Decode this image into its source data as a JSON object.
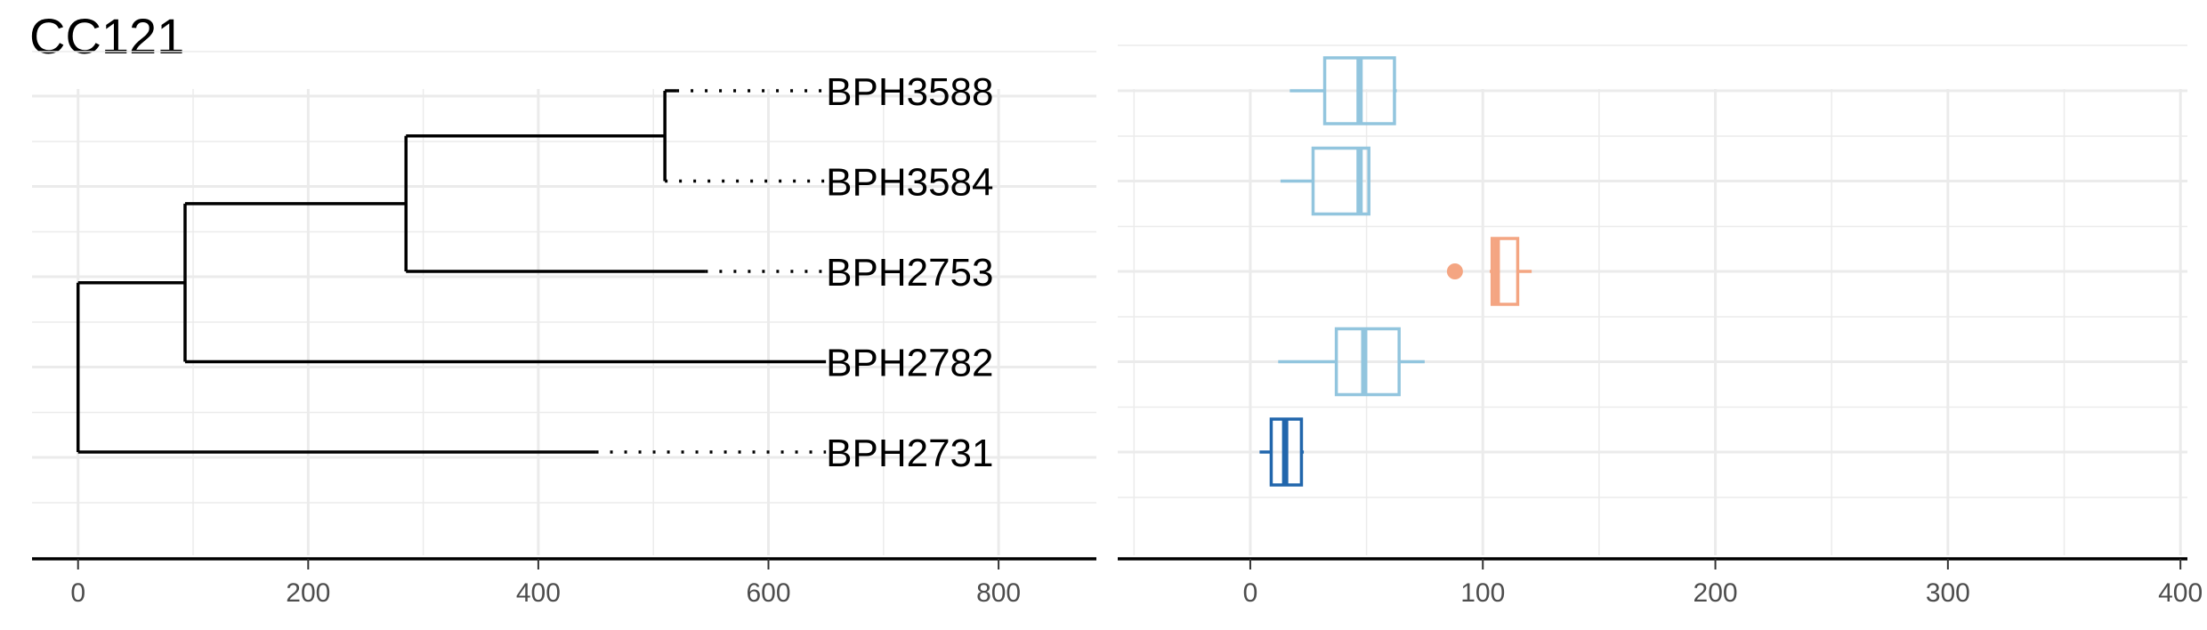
{
  "title": "CC121",
  "chart_data": [
    {
      "type": "dendrogram",
      "xlim": [
        -40,
        885
      ],
      "x_ticks": [
        0,
        200,
        400,
        600,
        800
      ],
      "grid": true,
      "leaves": [
        {
          "label": "BPH3588",
          "tip_x": 520
        },
        {
          "label": "BPH3584",
          "tip_x": 510
        },
        {
          "label": "BPH2753",
          "tip_x": 545
        },
        {
          "label": "BPH2782",
          "tip_x": 650
        },
        {
          "label": "BPH2731",
          "tip_x": 450
        }
      ],
      "nodes": [
        {
          "x": 0,
          "rows": [
            3,
            4
          ]
        },
        {
          "x": 93,
          "rows": [
            2,
            3
          ]
        },
        {
          "x": 285,
          "rows": [
            1,
            2
          ]
        },
        {
          "x": 510,
          "rows": [
            0,
            1
          ]
        }
      ],
      "label_x": 650
    },
    {
      "type": "boxplot",
      "orientation": "horizontal",
      "xlim": [
        -57,
        403
      ],
      "x_ticks": [
        0,
        100,
        200,
        300,
        400
      ],
      "grid": true,
      "boxes": [
        {
          "leaf": "BPH3588",
          "whisker_low": 17,
          "q1": 32,
          "median": 47,
          "q3": 62,
          "whisker_high": 63,
          "outliers": [],
          "color": "#92c5de"
        },
        {
          "leaf": "BPH3584",
          "whisker_low": 13,
          "q1": 27,
          "median": 47,
          "q3": 51,
          "whisker_high": 51,
          "outliers": [],
          "color": "#92c5de"
        },
        {
          "leaf": "BPH2753",
          "whisker_low": 103,
          "q1": 104,
          "median": 106,
          "q3": 115,
          "whisker_high": 121,
          "outliers": [
            88
          ],
          "color": "#f4a582"
        },
        {
          "leaf": "BPH2782",
          "whisker_low": 12,
          "q1": 37,
          "median": 49,
          "q3": 64,
          "whisker_high": 75,
          "outliers": [],
          "color": "#92c5de"
        },
        {
          "leaf": "BPH2731",
          "whisker_low": 4,
          "q1": 9,
          "median": 15,
          "q3": 22,
          "whisker_high": 23,
          "outliers": [],
          "color": "#2166ac"
        }
      ]
    }
  ]
}
